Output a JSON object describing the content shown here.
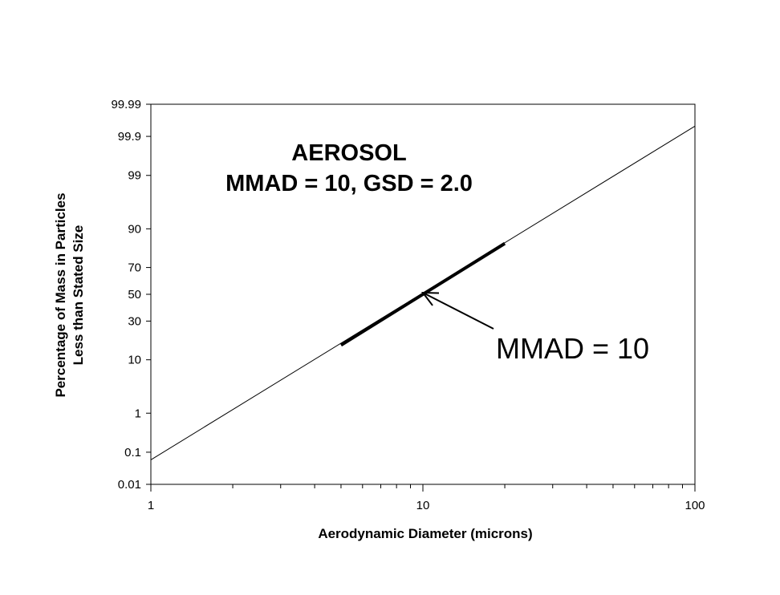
{
  "chart_data": {
    "type": "line",
    "title": [
      "AEROSOL",
      "MMAD = 10,  GSD = 2.0"
    ],
    "xlabel": "Aerodynamic Diameter (microns)",
    "ylabel": [
      "Percentage of Mass in Particles",
      "Less than Stated Size"
    ],
    "x_scale": "log",
    "y_scale": "probability",
    "xlim": [
      1,
      100
    ],
    "ylim": [
      0.01,
      99.99
    ],
    "x_ticks": [
      1,
      10,
      100
    ],
    "x_tick_labels": [
      "1",
      "10",
      "100"
    ],
    "y_ticks": [
      0.01,
      0.1,
      1,
      10,
      30,
      50,
      70,
      90,
      99,
      99.9,
      99.99
    ],
    "y_tick_labels": [
      "0.01",
      "0.1",
      "1",
      "10",
      "30",
      "50",
      "70",
      "90",
      "99",
      "99.9",
      "99.99"
    ],
    "grid": false,
    "series": [
      {
        "style": "thin",
        "x": [
          1,
          100
        ],
        "y": [
          0.06,
          99.95
        ]
      },
      {
        "style": "thick",
        "x": [
          5,
          20
        ],
        "y": [
          16,
          84
        ]
      }
    ],
    "annotations": [
      {
        "text": "MMAD = 10",
        "points_to": {
          "x": 10,
          "y": 50
        }
      }
    ]
  }
}
